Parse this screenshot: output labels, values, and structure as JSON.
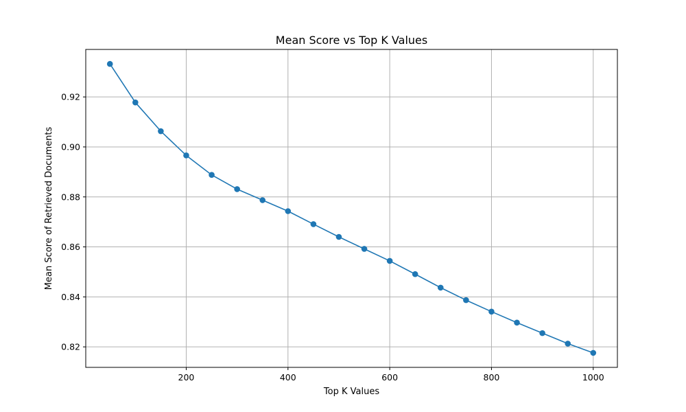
{
  "chart_data": {
    "type": "line",
    "title": "Mean Score vs Top K Values",
    "xlabel": "Top K Values",
    "ylabel": "Mean Score of Retrieved Documents",
    "x": [
      50,
      100,
      150,
      200,
      250,
      300,
      350,
      400,
      450,
      500,
      550,
      600,
      650,
      700,
      750,
      800,
      850,
      900,
      950,
      1000
    ],
    "series": [
      {
        "values": [
          0.9332,
          0.9178,
          0.9063,
          0.8966,
          0.8888,
          0.8831,
          0.8787,
          0.8743,
          0.8691,
          0.864,
          0.8592,
          0.8544,
          0.8491,
          0.8437,
          0.8387,
          0.8341,
          0.8297,
          0.8255,
          0.8213,
          0.8176
        ],
        "color": "#1f77b4",
        "marker": "circle"
      }
    ],
    "xlim": [
      2.5,
      1047.5
    ],
    "ylim": [
      0.8118,
      0.939
    ],
    "xticks": [
      200,
      400,
      600,
      800,
      1000
    ],
    "xtick_labels": [
      "200",
      "400",
      "600",
      "800",
      "1000"
    ],
    "yticks": [
      0.82,
      0.84,
      0.86,
      0.88,
      0.9,
      0.92
    ],
    "ytick_labels": [
      "0.82",
      "0.84",
      "0.86",
      "0.88",
      "0.90",
      "0.92"
    ],
    "grid": true,
    "legend": false
  }
}
